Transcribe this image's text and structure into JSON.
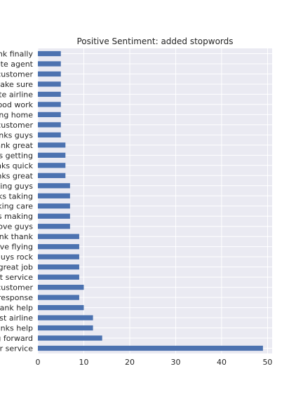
{
  "chart_data": {
    "type": "bar",
    "orientation": "horizontal",
    "title": "Positive Sentiment: added stopwords",
    "xlabel": "",
    "ylabel": "",
    "xlim": [
      0,
      51
    ],
    "xticks": [
      0,
      10,
      20,
      30,
      40,
      50
    ],
    "grid": true,
    "bar_color": "#4c72b0",
    "background": "#eaeaf2",
    "categories": [
      "customer service",
      "looking forward",
      "thanks help",
      "best airline",
      "thank help",
      "response",
      "customer",
      "great service",
      "great job",
      "guys rock",
      "love flying",
      "thank thank",
      "love guys",
      "thanks making",
      "taking care",
      "thanks taking",
      "flying guys",
      "thanks great",
      "thanks quick",
      "thanks getting",
      "thank great",
      "thanks guys",
      "customer",
      "getting home",
      "good work",
      "favorite airline",
      "make sure",
      "customer",
      "real estate agent",
      "thank finally"
    ],
    "tick_labels_visible": [
      "er service",
      "g forward",
      "anks help",
      "est airline",
      "hank help",
      "response",
      "customer",
      "at service",
      "great job",
      "guys rock",
      "ove flying",
      "ank thank",
      "ove guys",
      "s making",
      "king care",
      "ks taking",
      "ying guys",
      "nks great",
      "nks quick",
      "s getting",
      "ank great",
      "nks guys",
      "customer",
      "ng home",
      "ood work",
      "ite airline",
      "ake sure",
      "customer",
      "ate agent",
      "nk finally"
    ],
    "values": [
      49,
      14,
      12,
      12,
      10,
      9,
      10,
      9,
      9,
      9,
      9,
      9,
      7,
      7,
      7,
      7,
      7,
      6,
      6,
      6,
      6,
      5,
      5,
      5,
      5,
      5,
      5,
      5,
      5,
      5
    ]
  }
}
